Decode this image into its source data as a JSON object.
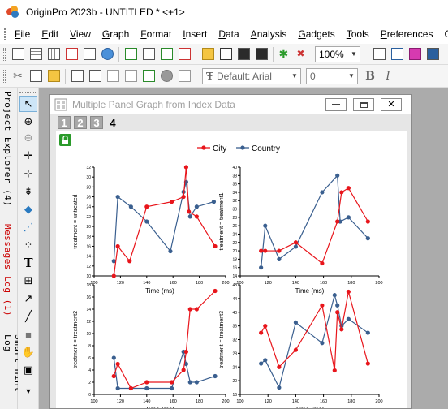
{
  "app": {
    "title": "OriginPro 2023b - UNTITLED * <+1>"
  },
  "menu": [
    "File",
    "Edit",
    "View",
    "Graph",
    "Format",
    "Insert",
    "Data",
    "Analysis",
    "Gadgets",
    "Tools",
    "Preferences",
    "Co"
  ],
  "toolbar": {
    "zoom": "100%",
    "font": "Default: Arial",
    "size": "0",
    "bold": "B",
    "italic": "I"
  },
  "dock": {
    "project_explorer": "Project Explorer (4)",
    "messages_log": "Messages Log (1)",
    "smart_hint_log": "Smart Hint Log"
  },
  "graph_window": {
    "title": "Multiple Panel Graph from Index Data",
    "layers": [
      "1",
      "2",
      "3",
      "4"
    ],
    "active_layer": "4"
  },
  "colors": {
    "city": "#e8151b",
    "country": "#3a5f8f"
  },
  "chart_data": {
    "type": "line",
    "legend": {
      "entries": [
        "City",
        "Country"
      ],
      "position": "top-center"
    },
    "panels": [
      {
        "xlabel": "Time (ms)",
        "ylabel": "treatment = untreated",
        "xlim": [
          100,
          200
        ],
        "xticks": [
          100,
          120,
          140,
          160,
          180,
          200
        ],
        "ylim": [
          10,
          32
        ],
        "yticks": [
          10,
          12,
          14,
          16,
          18,
          20,
          22,
          24,
          26,
          28,
          30,
          32
        ],
        "series": [
          {
            "name": "City",
            "x": [
              115,
              118,
              127,
              140,
              159,
              168,
              170,
              172,
              178,
              192
            ],
            "y": [
              10,
              16,
              13,
              24,
              25,
              26,
              32,
              23,
              22,
              16
            ]
          },
          {
            "name": "Country",
            "x": [
              115,
              118,
              128,
              140,
              158,
              168,
              170,
              173,
              178,
              191
            ],
            "y": [
              13,
              26,
              24,
              21,
              15,
              27,
              29,
              22,
              24,
              25
            ]
          }
        ]
      },
      {
        "xlabel": "Time (ms)",
        "ylabel": "treatment = treatment1",
        "xlim": [
          100,
          200
        ],
        "xticks": [
          100,
          120,
          140,
          160,
          180,
          200
        ],
        "ylim": [
          14,
          40
        ],
        "yticks": [
          14,
          16,
          18,
          20,
          22,
          24,
          26,
          28,
          30,
          32,
          34,
          36,
          38,
          40
        ],
        "series": [
          {
            "name": "City",
            "x": [
              115,
              118,
              128,
              140,
              159,
              170,
              173,
              178,
              192
            ],
            "y": [
              20,
              20,
              20,
              22,
              17,
              27,
              34,
              35,
              27
            ]
          },
          {
            "name": "Country",
            "x": [
              115,
              118,
              128,
              140,
              159,
              170,
              172,
              178,
              192
            ],
            "y": [
              16,
              26,
              18,
              21,
              34,
              38,
              27,
              28,
              23
            ]
          }
        ]
      },
      {
        "xlabel": "Time (ms)",
        "ylabel": "treatment = treatment2",
        "xlim": [
          100,
          200
        ],
        "xticks": [
          100,
          120,
          140,
          160,
          180,
          200
        ],
        "ylim": [
          0,
          18
        ],
        "yticks": [
          0,
          2,
          4,
          6,
          8,
          10,
          12,
          14,
          16,
          18
        ],
        "series": [
          {
            "name": "City",
            "x": [
              115,
              118,
              128,
              140,
              159,
              168,
              170,
              173,
              178,
              192
            ],
            "y": [
              3,
              5,
              1,
              2,
              2,
              4,
              7,
              14,
              14,
              17
            ]
          },
          {
            "name": "Country",
            "x": [
              115,
              118,
              128,
              140,
              159,
              168,
              170,
              173,
              178,
              192
            ],
            "y": [
              6,
              1,
              1,
              1,
              1,
              7,
              5,
              2,
              2,
              3
            ]
          }
        ]
      },
      {
        "xlabel": "Time (ms)",
        "ylabel": "treatment = treatment3",
        "xlim": [
          100,
          200
        ],
        "xticks": [
          100,
          120,
          140,
          160,
          180,
          200
        ],
        "ylim": [
          16,
          48
        ],
        "yticks": [
          16,
          20,
          24,
          28,
          32,
          36,
          40,
          44,
          48
        ],
        "series": [
          {
            "name": "City",
            "x": [
              115,
              118,
              128,
              140,
              159,
              168,
              170,
              173,
              178,
              192
            ],
            "y": [
              34,
              36,
              24,
              29,
              42,
              23,
              40,
              35,
              46,
              25
            ]
          },
          {
            "name": "Country",
            "x": [
              115,
              118,
              128,
              140,
              159,
              168,
              170,
              173,
              178,
              192
            ],
            "y": [
              25,
              26,
              18,
              37,
              31,
              45,
              42,
              36,
              38,
              34
            ]
          }
        ]
      }
    ]
  }
}
